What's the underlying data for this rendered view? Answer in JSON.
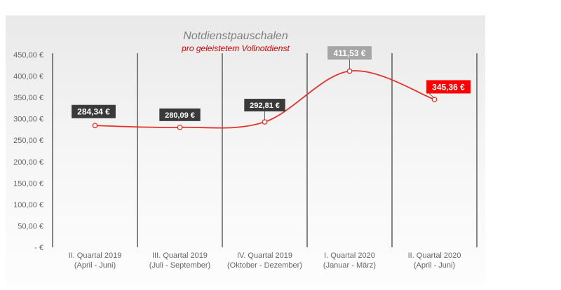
{
  "chart_data": {
    "type": "line",
    "title": "Notdienstpauschalen",
    "subtitle": "pro geleistetem Vollnotdienst",
    "categories": [
      [
        "II. Quartal 2019",
        "(April - Juni)"
      ],
      [
        "III. Quartal 2019",
        "(Juli - September)"
      ],
      [
        "IV. Quartal 2019",
        "(Oktober - Dezember)"
      ],
      [
        "I. Quartal 2020",
        "(Januar - März)"
      ],
      [
        "II. Quartal 2020",
        "(April - Juni)"
      ]
    ],
    "series": [
      {
        "values": [
          284.34,
          280.09,
          292.81,
          411.53,
          345.36
        ]
      }
    ],
    "data_labels": [
      "284,34 €",
      "280,09 €",
      "292,81 €",
      "411,53 €",
      "345,36 €"
    ],
    "yticks": [
      "-  €",
      "50,00 €",
      "100,00 €",
      "150,00 €",
      "200,00 €",
      "250,00 €",
      "300,00 €",
      "350,00 €",
      "400,00 €",
      "450,00 €"
    ],
    "ylim": [
      0,
      450
    ],
    "grid": "vertical",
    "colors": {
      "line": "#e8302a",
      "label_default": "#3a3a3a",
      "label_max": "#a6a6a6",
      "label_last": "#ff0000",
      "plot_background": "#efefef",
      "subtitle": "#e00000",
      "title": "#7f7f7f"
    }
  }
}
